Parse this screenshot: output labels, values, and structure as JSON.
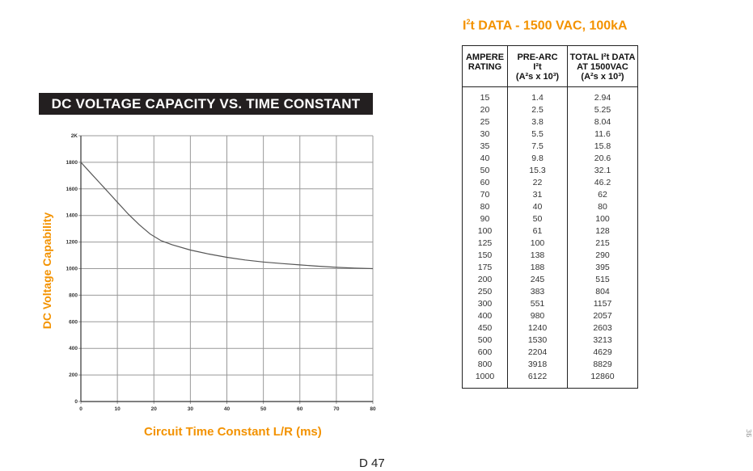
{
  "chart_data": {
    "type": "line",
    "title": "DC VOLTAGE CAPACITY VS. TIME CONSTANT",
    "xlabel": "Circuit Time Constant L/R (ms)",
    "ylabel": "DC Voltage Capability",
    "xlim": [
      0,
      80
    ],
    "ylim": [
      0,
      2000
    ],
    "x_ticks": [
      "0",
      "10",
      "20",
      "30",
      "40",
      "50",
      "60",
      "70",
      "80"
    ],
    "y_ticks": [
      "0",
      "200",
      "400",
      "600",
      "800",
      "1000",
      "1200",
      "1400",
      "1600",
      "1800",
      "2K"
    ],
    "grid": true,
    "series": [
      {
        "x": [
          0,
          2,
          5,
          8,
          10,
          13,
          16,
          19,
          22,
          25,
          30,
          35,
          40,
          45,
          50,
          55,
          60,
          65,
          70,
          75,
          80
        ],
        "y": [
          1800,
          1740,
          1650,
          1560,
          1500,
          1410,
          1330,
          1260,
          1210,
          1180,
          1140,
          1110,
          1085,
          1065,
          1050,
          1038,
          1028,
          1018,
          1010,
          1004,
          1000
        ]
      }
    ]
  },
  "table": {
    "title_main": "I",
    "title_sup": "2",
    "title_rest": "t DATA - 1500 VAC, 100kA",
    "headers": [
      [
        "AMPERE",
        "RATING"
      ],
      [
        "PRE-ARC",
        "I²t",
        "(A²s x 10³)"
      ],
      [
        "TOTAL I²t DATA",
        "AT 1500VAC",
        "(A²s x 10³)"
      ]
    ],
    "rows": [
      [
        "15",
        "1.4",
        "2.94"
      ],
      [
        "20",
        "2.5",
        "5.25"
      ],
      [
        "25",
        "3.8",
        "8.04"
      ],
      [
        "30",
        "5.5",
        "11.6"
      ],
      [
        "35",
        "7.5",
        "15.8"
      ],
      [
        "40",
        "9.8",
        "20.6"
      ],
      [
        "50",
        "15.3",
        "32.1"
      ],
      [
        "60",
        "22",
        "46.2"
      ],
      [
        "70",
        "31",
        "62"
      ],
      [
        "80",
        "40",
        "80"
      ],
      [
        "90",
        "50",
        "100"
      ],
      [
        "100",
        "61",
        "128"
      ],
      [
        "125",
        "100",
        "215"
      ],
      [
        "150",
        "138",
        "290"
      ],
      [
        "175",
        "188",
        "395"
      ],
      [
        "200",
        "245",
        "515"
      ],
      [
        "250",
        "383",
        "804"
      ],
      [
        "300",
        "551",
        "1157"
      ],
      [
        "400",
        "980",
        "2057"
      ],
      [
        "450",
        "1240",
        "2603"
      ],
      [
        "500",
        "1530",
        "3213"
      ],
      [
        "600",
        "2204",
        "4629"
      ],
      [
        "800",
        "3918",
        "8829"
      ],
      [
        "1000",
        "6122",
        "12860"
      ]
    ]
  },
  "page_number": "D 47",
  "side_mark": "ЗБ",
  "colors": {
    "accent": "#f39200",
    "banner_bg": "#231f20",
    "curve": "#555555",
    "grid": "#999999"
  }
}
